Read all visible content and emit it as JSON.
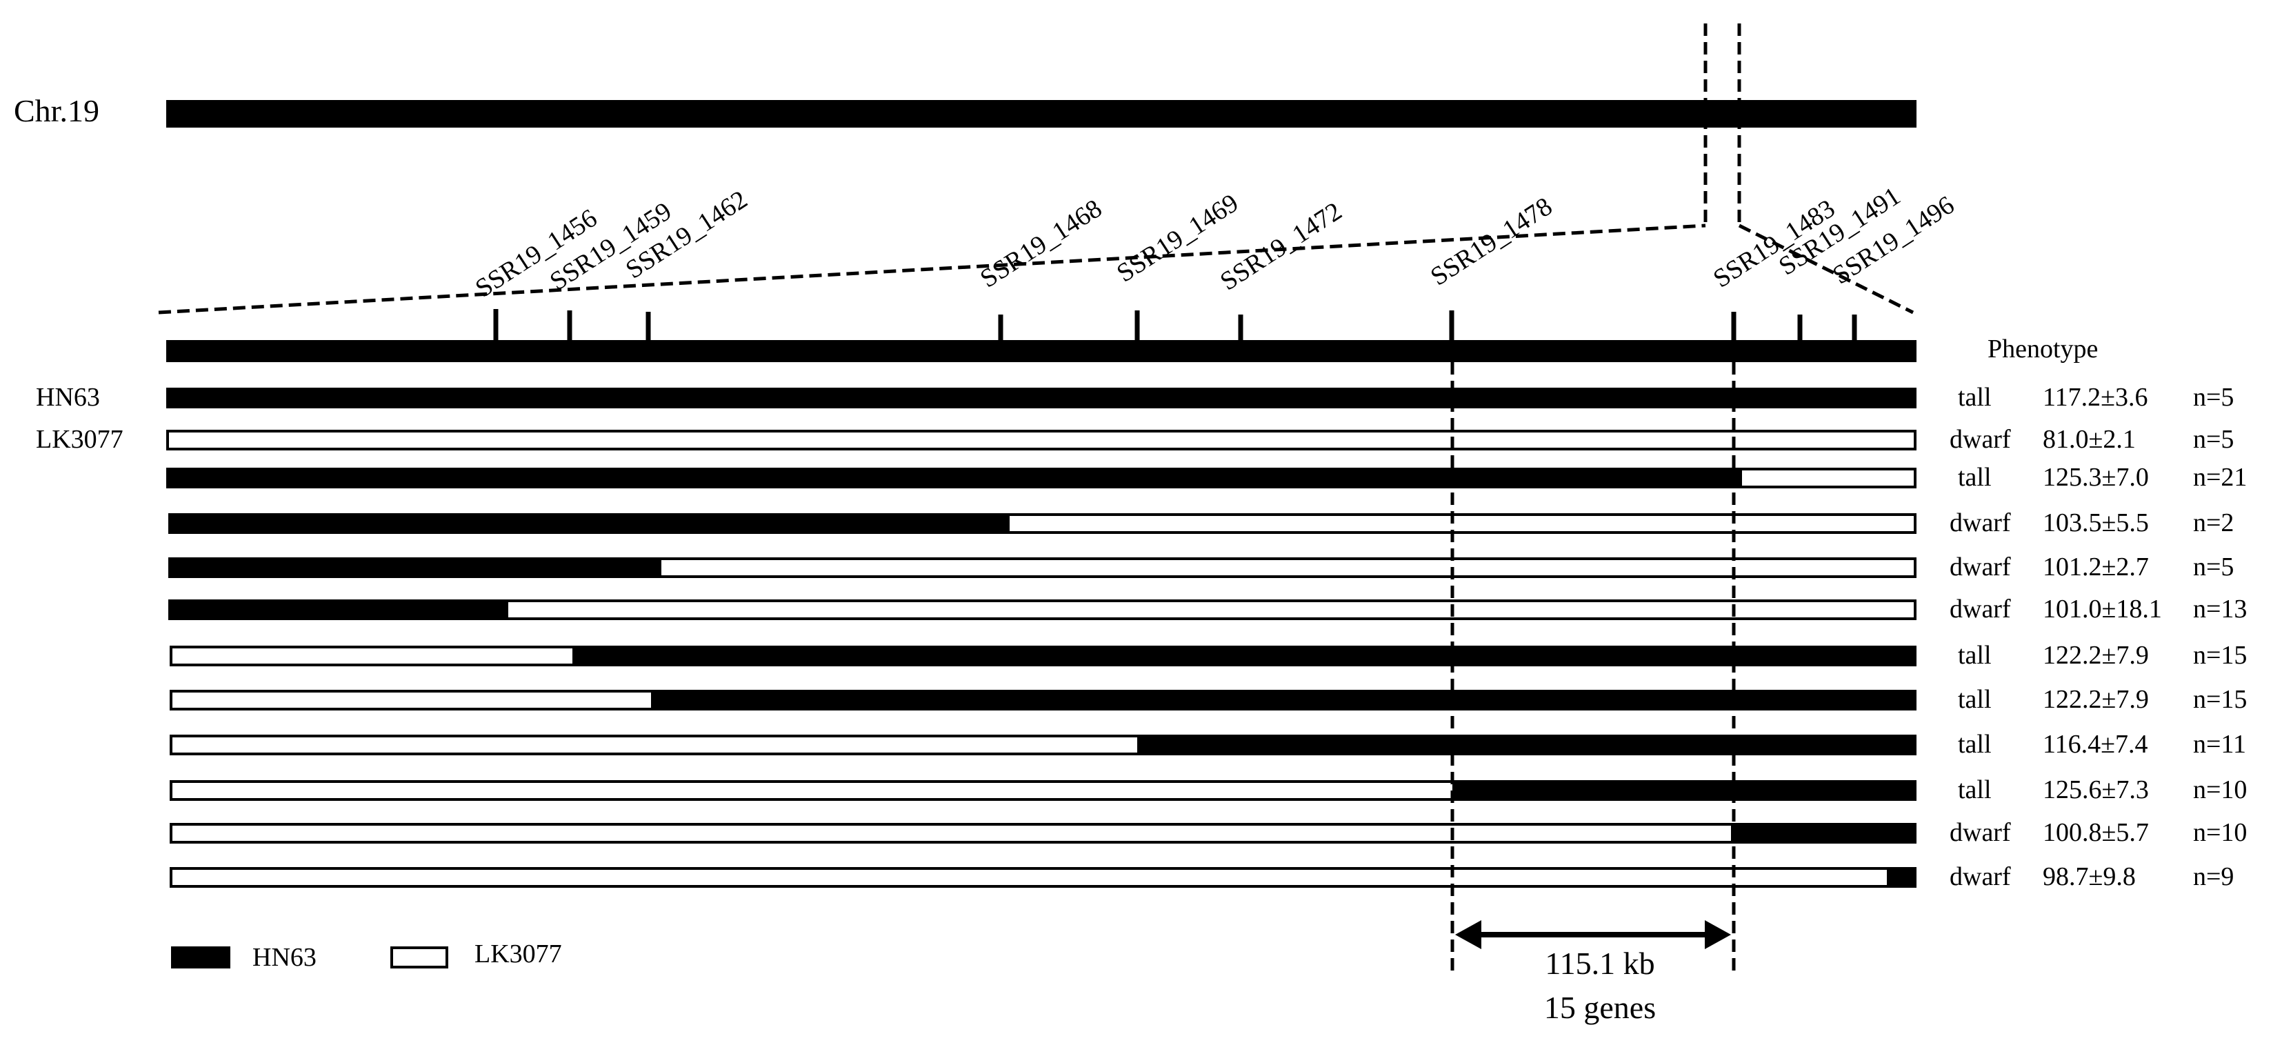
{
  "chromosome": {
    "label": "Chr.19"
  },
  "markers": [
    {
      "name": "SSR19_1456"
    },
    {
      "name": "SSR19_1459"
    },
    {
      "name": "SSR19_1462"
    },
    {
      "name": "SSR19_1468"
    },
    {
      "name": "SSR19_1469"
    },
    {
      "name": "SSR19_1472"
    },
    {
      "name": "SSR19_1478"
    },
    {
      "name": "SSR19_1483"
    },
    {
      "name": "SSR19_1491"
    },
    {
      "name": "SSR19_1496"
    }
  ],
  "phenotype_header": "Phenotype",
  "rows": [
    {
      "label": "HN63",
      "phenotype": "tall",
      "value": "117.2±3.6",
      "n": "n=5"
    },
    {
      "label": "LK3077",
      "phenotype": "dwarf",
      "value": "81.0±2.1",
      "n": "n=5"
    },
    {
      "label": "",
      "phenotype": "tall",
      "value": "125.3±7.0",
      "n": "n=21"
    },
    {
      "label": "",
      "phenotype": "dwarf",
      "value": "103.5±5.5",
      "n": "n=2"
    },
    {
      "label": "",
      "phenotype": "dwarf",
      "value": "101.2±2.7",
      "n": "n=5"
    },
    {
      "label": "",
      "phenotype": "dwarf",
      "value": "101.0±18.1",
      "n": "n=13"
    },
    {
      "label": "",
      "phenotype": "tall",
      "value": "122.2±7.9",
      "n": "n=15"
    },
    {
      "label": "",
      "phenotype": "tall",
      "value": "122.2±7.9",
      "n": "n=15"
    },
    {
      "label": "",
      "phenotype": "tall",
      "value": "116.4±7.4",
      "n": "n=11"
    },
    {
      "label": "",
      "phenotype": "tall",
      "value": "125.6±7.3",
      "n": "n=10"
    },
    {
      "label": "",
      "phenotype": "dwarf",
      "value": "100.8±5.7",
      "n": "n=10"
    },
    {
      "label": "",
      "phenotype": "dwarf",
      "value": "98.7±9.8",
      "n": "n=9"
    }
  ],
  "legend": [
    {
      "label": "HN63",
      "fill": "#000000"
    },
    {
      "label": "LK3077",
      "fill": "#ffffff"
    }
  ],
  "interval": {
    "size": "115.1 kb",
    "genes": "15 genes"
  }
}
